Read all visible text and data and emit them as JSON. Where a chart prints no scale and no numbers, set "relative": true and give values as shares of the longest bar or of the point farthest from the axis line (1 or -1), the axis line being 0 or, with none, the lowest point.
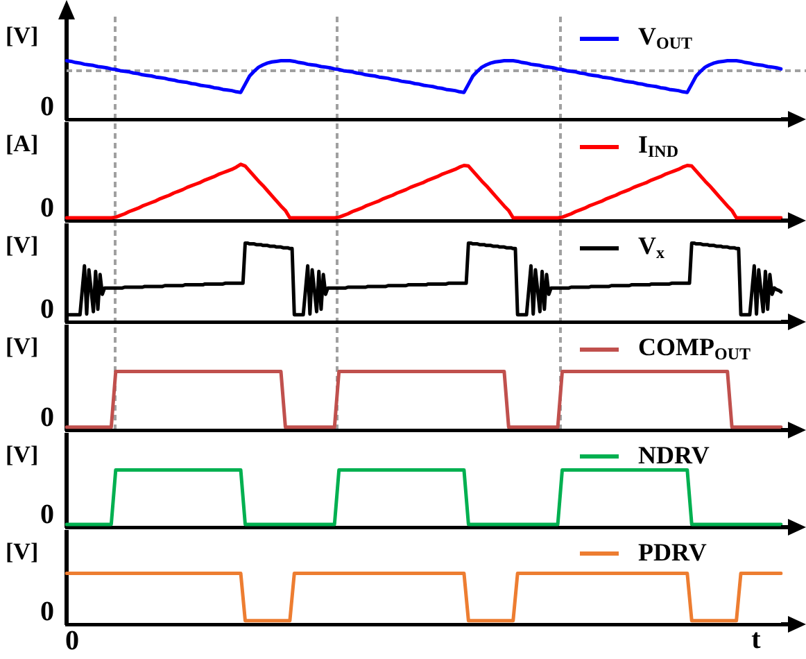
{
  "chart_data": [
    {
      "type": "line",
      "ylabel": "[V]",
      "relative": true,
      "legend": "top right",
      "annotations": [
        "0"
      ],
      "categories": [
        null,
        null,
        null,
        null,
        null,
        null,
        null,
        null,
        null,
        null,
        null,
        null,
        null,
        null,
        null,
        null,
        null,
        null,
        null,
        null,
        null,
        null,
        null,
        null,
        null,
        null,
        null,
        null,
        null,
        null,
        null,
        null,
        null,
        null,
        null,
        null,
        null,
        null,
        null,
        null,
        null,
        null,
        null,
        null,
        null,
        null,
        null,
        null,
        null,
        null,
        null,
        null,
        null,
        null,
        null,
        null,
        null,
        null,
        null,
        null,
        null,
        null,
        null,
        null,
        null,
        null,
        null,
        null,
        null,
        null,
        null,
        null,
        null,
        null,
        null,
        null,
        null,
        null,
        null,
        null,
        null,
        null,
        null,
        null,
        null,
        null,
        null,
        null,
        null,
        null,
        null,
        null,
        null,
        null,
        null,
        null,
        null,
        null,
        null,
        null,
        null,
        null,
        null,
        null,
        null,
        null,
        null,
        null,
        null,
        null,
        null,
        null,
        null,
        null,
        null,
        null,
        null,
        null,
        null,
        null,
        null,
        null,
        null,
        null,
        null,
        null,
        null,
        null,
        null,
        null,
        null,
        null,
        null,
        null,
        null,
        null,
        null,
        null,
        null,
        null,
        null,
        null,
        null,
        null,
        null,
        null,
        null,
        null,
        null,
        null,
        null,
        null,
        null,
        null,
        null,
        null,
        null,
        null,
        null,
        null,
        null
      ],
      "ref_lines": [
        {
          "axis": "y",
          "value": 0.83,
          "color": "#a0a0a0",
          "line_style": "dashed"
        }
      ],
      "series": [
        {
          "name": "V$_{OUT}$",
          "color": "#0000ff",
          "values": [
            1,
            0.99,
            0.97,
            0.96,
            0.94,
            0.93,
            0.92,
            0.9,
            0.89,
            0.88,
            0.86,
            0.85,
            0.83,
            0.82,
            0.81,
            0.79,
            0.78,
            0.76,
            0.75,
            0.74,
            0.72,
            0.71,
            0.7,
            0.68,
            0.67,
            0.65,
            0.64,
            0.63,
            0.61,
            0.6,
            0.58,
            0.57,
            0.56,
            0.54,
            0.53,
            0.51,
            0.5,
            0.49,
            0.47,
            0.46,
            0.6,
            0.74,
            0.82,
            0.89,
            0.93,
            0.96,
            0.98,
            0.99,
            1,
            1,
            1,
            0.99,
            0.97,
            0.96,
            0.94,
            0.93,
            0.92,
            0.9,
            0.89,
            0.88,
            0.86,
            0.85,
            0.83,
            0.82,
            0.81,
            0.79,
            0.78,
            0.76,
            0.75,
            0.74,
            0.72,
            0.71,
            0.7,
            0.68,
            0.67,
            0.65,
            0.64,
            0.63,
            0.61,
            0.6,
            0.58,
            0.57,
            0.56,
            0.54,
            0.53,
            0.51,
            0.5,
            0.49,
            0.47,
            0.46,
            0.6,
            0.74,
            0.82,
            0.89,
            0.93,
            0.96,
            0.98,
            0.99,
            1,
            1,
            1,
            0.99,
            0.97,
            0.96,
            0.94,
            0.93,
            0.92,
            0.9,
            0.89,
            0.88,
            0.86,
            0.85,
            0.83,
            0.82,
            0.81,
            0.79,
            0.78,
            0.76,
            0.75,
            0.74,
            0.72,
            0.71,
            0.7,
            0.68,
            0.67,
            0.65,
            0.64,
            0.63,
            0.61,
            0.6,
            0.58,
            0.57,
            0.56,
            0.54,
            0.53,
            0.51,
            0.5,
            0.49,
            0.47,
            0.46,
            0.6,
            0.74,
            0.82,
            0.89,
            0.93,
            0.96,
            0.98,
            0.99,
            1,
            1,
            1,
            0.99,
            0.97,
            0.96,
            0.94,
            0.93,
            0.92,
            0.9,
            0.89,
            0.88,
            0.86
          ]
        }
      ]
    },
    {
      "type": "line",
      "ylabel": "[A]",
      "relative": true,
      "legend": "top right",
      "annotations": [
        "0"
      ],
      "categories": [
        null,
        null,
        null,
        null,
        null,
        null,
        null,
        null,
        null,
        null,
        null,
        null,
        null,
        null,
        null,
        null,
        null,
        null,
        null,
        null,
        null,
        null,
        null,
        null,
        null,
        null,
        null,
        null,
        null,
        null,
        null,
        null,
        null,
        null,
        null,
        null,
        null,
        null,
        null,
        null,
        null,
        null,
        null,
        null,
        null,
        null,
        null,
        null,
        null,
        null,
        null,
        null,
        null,
        null,
        null,
        null,
        null,
        null,
        null,
        null,
        null,
        null,
        null,
        null,
        null,
        null,
        null,
        null,
        null,
        null,
        null,
        null,
        null,
        null,
        null,
        null,
        null,
        null,
        null,
        null,
        null,
        null,
        null,
        null,
        null,
        null,
        null,
        null,
        null,
        null,
        null,
        null,
        null,
        null,
        null,
        null,
        null,
        null,
        null,
        null,
        null,
        null,
        null,
        null,
        null,
        null,
        null,
        null,
        null,
        null,
        null,
        null,
        null,
        null,
        null,
        null,
        null,
        null,
        null,
        null,
        null,
        null,
        null,
        null,
        null,
        null,
        null,
        null,
        null,
        null,
        null,
        null,
        null,
        null,
        null,
        null,
        null,
        null,
        null,
        null,
        null,
        null,
        null,
        null,
        null,
        null,
        null,
        null,
        null,
        null,
        null,
        null,
        null,
        null,
        null,
        null,
        null,
        null,
        null,
        null,
        null
      ],
      "series": [
        {
          "name": "I$_{IND}$",
          "color": "#ff0000",
          "values": [
            0.05,
            0.05,
            0.05,
            0.05,
            0.05,
            0.05,
            0.05,
            0.05,
            0.05,
            0.05,
            0.05,
            0.06,
            0.09,
            0.12,
            0.16,
            0.19,
            0.22,
            0.26,
            0.29,
            0.32,
            0.35,
            0.39,
            0.42,
            0.45,
            0.49,
            0.52,
            0.55,
            0.59,
            0.62,
            0.65,
            0.68,
            0.72,
            0.75,
            0.78,
            0.82,
            0.85,
            0.88,
            0.91,
            0.95,
            1,
            0.97,
            0.88,
            0.79,
            0.7,
            0.62,
            0.53,
            0.44,
            0.35,
            0.26,
            0.18,
            0.05,
            0.05,
            0.05,
            0.05,
            0.05,
            0.05,
            0.05,
            0.05,
            0.05,
            0.05,
            0.05,
            0.06,
            0.09,
            0.12,
            0.16,
            0.19,
            0.22,
            0.26,
            0.29,
            0.32,
            0.35,
            0.39,
            0.42,
            0.45,
            0.49,
            0.52,
            0.55,
            0.59,
            0.62,
            0.65,
            0.68,
            0.72,
            0.75,
            0.78,
            0.82,
            0.85,
            0.88,
            0.91,
            0.95,
            0.98,
            0.97,
            0.88,
            0.79,
            0.7,
            0.62,
            0.53,
            0.44,
            0.35,
            0.26,
            0.18,
            0.05,
            0.05,
            0.05,
            0.05,
            0.05,
            0.05,
            0.05,
            0.05,
            0.05,
            0.05,
            0.05,
            0.06,
            0.09,
            0.12,
            0.16,
            0.19,
            0.22,
            0.26,
            0.29,
            0.32,
            0.35,
            0.39,
            0.42,
            0.45,
            0.49,
            0.52,
            0.55,
            0.59,
            0.62,
            0.65,
            0.68,
            0.72,
            0.75,
            0.78,
            0.82,
            0.85,
            0.88,
            0.91,
            0.95,
            0.98,
            0.97,
            0.88,
            0.79,
            0.7,
            0.62,
            0.53,
            0.44,
            0.35,
            0.26,
            0.18,
            0.05,
            0.05,
            0.05,
            0.05,
            0.05,
            0.05,
            0.05,
            0.05,
            0.05,
            0.05,
            0.05
          ]
        }
      ]
    },
    {
      "type": "line",
      "ylabel": "[V]",
      "relative": true,
      "legend": "top right",
      "annotations": [
        "0"
      ],
      "categories": [
        null,
        null,
        null,
        null,
        null,
        null,
        null,
        null,
        null,
        null,
        null,
        null,
        null,
        null,
        null,
        null,
        null,
        null,
        null,
        null,
        null,
        null,
        null,
        null,
        null,
        null,
        null,
        null,
        null,
        null,
        null,
        null,
        null,
        null,
        null,
        null,
        null,
        null,
        null,
        null,
        null,
        null,
        null,
        null,
        null,
        null,
        null,
        null,
        null,
        null,
        null,
        null,
        null,
        null,
        null,
        null,
        null,
        null,
        null,
        null,
        null,
        null,
        null,
        null,
        null,
        null,
        null,
        null,
        null,
        null,
        null,
        null,
        null,
        null,
        null,
        null,
        null,
        null,
        null,
        null,
        null,
        null,
        null,
        null,
        null,
        null,
        null,
        null,
        null,
        null,
        null,
        null,
        null,
        null,
        null,
        null,
        null,
        null,
        null,
        null,
        null,
        null,
        null,
        null,
        null,
        null,
        null,
        null,
        null,
        null,
        null,
        null,
        null,
        null,
        null,
        null,
        null,
        null,
        null,
        null,
        null,
        null,
        null,
        null,
        null,
        null,
        null,
        null,
        null,
        null,
        null,
        null,
        null,
        null,
        null,
        null,
        null,
        null,
        null,
        null,
        null,
        null,
        null,
        null,
        null,
        null,
        null,
        null,
        null,
        null,
        null,
        null,
        null,
        null,
        null,
        null,
        null,
        null,
        null,
        null,
        null,
        null,
        null,
        null,
        null,
        null,
        null,
        null,
        null,
        null,
        null,
        null,
        null,
        null,
        null,
        null,
        null,
        null,
        null,
        null,
        null,
        null,
        null,
        null,
        null,
        null,
        null,
        null,
        null,
        null,
        null,
        null,
        null,
        null,
        null,
        null,
        null,
        null,
        null,
        null,
        null,
        null,
        null,
        null,
        null,
        null,
        null,
        null,
        null,
        null,
        null,
        null,
        null,
        null,
        null,
        null,
        null,
        null,
        null,
        null,
        null,
        null,
        null,
        null,
        null,
        null,
        null,
        null,
        null,
        null,
        null,
        null,
        null,
        null,
        null,
        null,
        null,
        null,
        null,
        null,
        null,
        null,
        null,
        null,
        null,
        null,
        null,
        null,
        null,
        null,
        null,
        null,
        null,
        null,
        null,
        null,
        null,
        null,
        null,
        null,
        null,
        null,
        null,
        null,
        null,
        null,
        null,
        null,
        null,
        null,
        null,
        null,
        null,
        null,
        null,
        null,
        null,
        null,
        null,
        null,
        null,
        null,
        null,
        null,
        null,
        null,
        null,
        null,
        null,
        null,
        null,
        null,
        null,
        null,
        null,
        null,
        null,
        null,
        null,
        null,
        null,
        null,
        null,
        null,
        null,
        null,
        null,
        null,
        null,
        null,
        null,
        null,
        null,
        null,
        null,
        null,
        null,
        null,
        null,
        null,
        null
      ],
      "series": [
        {
          "name": "V$_{x}$",
          "color": "#000000",
          "values": [
            0.09,
            0.09,
            0.09,
            0.09,
            0.09,
            0.09,
            0.09,
            0.4,
            0.71,
            0.1,
            0.66,
            0.4,
            0.13,
            0.64,
            0.16,
            0.6,
            0.35,
            0.43,
            0.43,
            0.43,
            0.43,
            0.43,
            0.43,
            0.43,
            0.43,
            0.43,
            0.44,
            0.44,
            0.44,
            0.44,
            0.44,
            0.44,
            0.44,
            0.44,
            0.44,
            0.45,
            0.45,
            0.45,
            0.45,
            0.45,
            0.45,
            0.45,
            0.45,
            0.45,
            0.46,
            0.46,
            0.46,
            0.46,
            0.46,
            0.46,
            0.46,
            0.46,
            0.46,
            0.47,
            0.47,
            0.47,
            0.47,
            0.47,
            0.47,
            0.47,
            0.47,
            0.47,
            0.48,
            0.48,
            0.48,
            0.48,
            0.48,
            0.48,
            0.48,
            0.48,
            0.48,
            0.49,
            0.49,
            0.49,
            0.49,
            0.49,
            0.49,
            0.49,
            0.49,
            0.49,
            1,
            1,
            0.99,
            0.99,
            0.99,
            0.98,
            0.98,
            0.98,
            0.97,
            0.97,
            0.97,
            0.96,
            0.96,
            0.96,
            0.95,
            0.95,
            0.95,
            0.94,
            0.94,
            0.94,
            0.93,
            0.93,
            0.09,
            0.09,
            0.09,
            0.09,
            0.09,
            0.4,
            0.71,
            0.1,
            0.66,
            0.4,
            0.13,
            0.64,
            0.16,
            0.6,
            0.35,
            0.43,
            0.43,
            0.43,
            0.43,
            0.43,
            0.43,
            0.43,
            0.43,
            0.43,
            0.44,
            0.44,
            0.44,
            0.44,
            0.44,
            0.44,
            0.44,
            0.44,
            0.44,
            0.45,
            0.45,
            0.45,
            0.45,
            0.45,
            0.45,
            0.45,
            0.45,
            0.45,
            0.46,
            0.46,
            0.46,
            0.46,
            0.46,
            0.46,
            0.46,
            0.46,
            0.46,
            0.47,
            0.47,
            0.47,
            0.47,
            0.47,
            0.47,
            0.47,
            0.47,
            0.47,
            0.48,
            0.48,
            0.48,
            0.48,
            0.48,
            0.48,
            0.48,
            0.48,
            0.48,
            0.49,
            0.49,
            0.49,
            0.49,
            0.49,
            0.49,
            0.49,
            0.49,
            0.49,
            1,
            1,
            0.99,
            0.99,
            0.99,
            0.98,
            0.98,
            0.98,
            0.97,
            0.97,
            0.97,
            0.96,
            0.96,
            0.96,
            0.95,
            0.95,
            0.95,
            0.94,
            0.94,
            0.94,
            0.93,
            0.93,
            0.09,
            0.09,
            0.09,
            0.09,
            0.09,
            0.4,
            0.71,
            0.1,
            0.66,
            0.4,
            0.13,
            0.64,
            0.16,
            0.6,
            0.35,
            0.43,
            0.43,
            0.43,
            0.43,
            0.43,
            0.43,
            0.43,
            0.43,
            0.43,
            0.44,
            0.44,
            0.44,
            0.44,
            0.44,
            0.44,
            0.44,
            0.44,
            0.44,
            0.45,
            0.45,
            0.45,
            0.45,
            0.45,
            0.45,
            0.45,
            0.45,
            0.45,
            0.46,
            0.46,
            0.46,
            0.46,
            0.46,
            0.46,
            0.46,
            0.46,
            0.46,
            0.47,
            0.47,
            0.47,
            0.47,
            0.47,
            0.47,
            0.47,
            0.47,
            0.47,
            0.48,
            0.48,
            0.48,
            0.48,
            0.48,
            0.48,
            0.48,
            0.48,
            0.48,
            0.49,
            0.49,
            0.49,
            0.49,
            0.49,
            0.49,
            0.49,
            0.49,
            0.49,
            1,
            1,
            0.99,
            0.99,
            0.99,
            0.98,
            0.98,
            0.98,
            0.97,
            0.97,
            0.97,
            0.96,
            0.96,
            0.96,
            0.95,
            0.95,
            0.95,
            0.94,
            0.94,
            0.94,
            0.93,
            0.93,
            0.09,
            0.09,
            0.09,
            0.09,
            0.09,
            0.4,
            0.71,
            0.1,
            0.66,
            0.4,
            0.13,
            0.64,
            0.16,
            0.6,
            0.35,
            0.43,
            0.41,
            0.4,
            0.38
          ]
        }
      ]
    },
    {
      "type": "line",
      "ylabel": "[V]",
      "relative": true,
      "legend": "top right",
      "annotations": [
        "0"
      ],
      "categories": [
        null,
        null,
        null,
        null,
        null,
        null,
        null,
        null,
        null,
        null,
        null,
        null,
        null,
        null,
        null,
        null,
        null,
        null,
        null,
        null,
        null,
        null,
        null,
        null,
        null,
        null,
        null,
        null,
        null,
        null,
        null,
        null,
        null,
        null,
        null,
        null,
        null,
        null,
        null,
        null,
        null,
        null,
        null,
        null,
        null,
        null,
        null,
        null,
        null,
        null,
        null,
        null,
        null,
        null,
        null,
        null,
        null,
        null,
        null,
        null,
        null,
        null,
        null,
        null,
        null,
        null,
        null,
        null,
        null,
        null,
        null,
        null,
        null,
        null,
        null,
        null,
        null,
        null,
        null,
        null,
        null,
        null,
        null,
        null,
        null,
        null,
        null,
        null,
        null,
        null,
        null,
        null,
        null,
        null,
        null,
        null,
        null,
        null,
        null,
        null,
        null,
        null,
        null,
        null,
        null,
        null,
        null,
        null,
        null,
        null,
        null,
        null,
        null,
        null,
        null,
        null,
        null,
        null,
        null,
        null,
        null,
        null,
        null,
        null,
        null,
        null,
        null,
        null,
        null,
        null,
        null,
        null,
        null,
        null,
        null,
        null,
        null,
        null,
        null,
        null,
        null,
        null,
        null,
        null,
        null,
        null,
        null,
        null,
        null,
        null,
        null,
        null,
        null,
        null,
        null,
        null,
        null,
        null,
        null,
        null,
        null
      ],
      "series": [
        {
          "name": "COMP$_{OUT}$",
          "color": "#c0504d",
          "values": [
            0.05,
            0.05,
            0.05,
            0.05,
            0.05,
            0.05,
            0.05,
            0.05,
            0.05,
            0.05,
            0.05,
            1,
            1,
            1,
            1,
            1,
            1,
            1,
            1,
            1,
            1,
            1,
            1,
            1,
            1,
            1,
            1,
            1,
            1,
            1,
            1,
            1,
            1,
            1,
            1,
            1,
            1,
            1,
            1,
            1,
            1,
            1,
            1,
            1,
            1,
            1,
            1,
            1,
            1,
            0.05,
            0.05,
            0.05,
            0.05,
            0.05,
            0.05,
            0.05,
            0.05,
            0.05,
            0.05,
            0.05,
            0.05,
            1,
            1,
            1,
            1,
            1,
            1,
            1,
            1,
            1,
            1,
            1,
            1,
            1,
            1,
            1,
            1,
            1,
            1,
            1,
            1,
            1,
            1,
            1,
            1,
            1,
            1,
            1,
            1,
            1,
            1,
            1,
            1,
            1,
            1,
            1,
            1,
            1,
            1,
            0.05,
            0.05,
            0.05,
            0.05,
            0.05,
            0.05,
            0.05,
            0.05,
            0.05,
            0.05,
            0.05,
            0.05,
            1,
            1,
            1,
            1,
            1,
            1,
            1,
            1,
            1,
            1,
            1,
            1,
            1,
            1,
            1,
            1,
            1,
            1,
            1,
            1,
            1,
            1,
            1,
            1,
            1,
            1,
            1,
            1,
            1,
            1,
            1,
            1,
            1,
            1,
            1,
            1,
            1,
            1,
            0.05,
            0.05,
            0.05,
            0.05,
            0.05,
            0.05,
            0.05,
            0.05,
            0.05,
            0.05,
            0.05,
            0.05
          ]
        }
      ]
    },
    {
      "type": "line",
      "ylabel": "[V]",
      "relative": true,
      "legend": "top right",
      "annotations": [
        "0"
      ],
      "categories": [
        null,
        null,
        null,
        null,
        null,
        null,
        null,
        null,
        null,
        null,
        null,
        null,
        null,
        null,
        null,
        null,
        null,
        null,
        null,
        null,
        null,
        null,
        null,
        null,
        null,
        null,
        null,
        null,
        null,
        null,
        null,
        null,
        null,
        null,
        null,
        null,
        null,
        null,
        null,
        null,
        null,
        null,
        null,
        null,
        null,
        null,
        null,
        null,
        null,
        null,
        null,
        null,
        null,
        null,
        null,
        null,
        null,
        null,
        null,
        null,
        null,
        null,
        null,
        null,
        null,
        null,
        null,
        null,
        null,
        null,
        null,
        null,
        null,
        null,
        null,
        null,
        null,
        null,
        null,
        null,
        null,
        null,
        null,
        null,
        null,
        null,
        null,
        null,
        null,
        null,
        null,
        null,
        null,
        null,
        null,
        null,
        null,
        null,
        null,
        null,
        null,
        null,
        null,
        null,
        null,
        null,
        null,
        null,
        null,
        null,
        null,
        null,
        null,
        null,
        null,
        null,
        null,
        null,
        null,
        null,
        null,
        null,
        null,
        null,
        null,
        null,
        null,
        null,
        null,
        null,
        null,
        null,
        null,
        null,
        null,
        null,
        null,
        null,
        null,
        null,
        null,
        null,
        null,
        null,
        null,
        null,
        null,
        null,
        null,
        null,
        null,
        null,
        null,
        null,
        null,
        null,
        null,
        null,
        null,
        null,
        null
      ],
      "series": [
        {
          "name": "NDRV",
          "color": "#00b050",
          "values": [
            0.05,
            0.05,
            0.05,
            0.05,
            0.05,
            0.05,
            0.05,
            0.05,
            0.05,
            0.05,
            0.05,
            1,
            1,
            1,
            1,
            1,
            1,
            1,
            1,
            1,
            1,
            1,
            1,
            1,
            1,
            1,
            1,
            1,
            1,
            1,
            1,
            1,
            1,
            1,
            1,
            1,
            1,
            1,
            1,
            1,
            0.05,
            0.05,
            0.05,
            0.05,
            0.05,
            0.05,
            0.05,
            0.05,
            0.05,
            0.05,
            0.05,
            0.05,
            0.05,
            0.05,
            0.05,
            0.05,
            0.05,
            0.05,
            0.05,
            0.05,
            0.05,
            1,
            1,
            1,
            1,
            1,
            1,
            1,
            1,
            1,
            1,
            1,
            1,
            1,
            1,
            1,
            1,
            1,
            1,
            1,
            1,
            1,
            1,
            1,
            1,
            1,
            1,
            1,
            1,
            1,
            0.05,
            0.05,
            0.05,
            0.05,
            0.05,
            0.05,
            0.05,
            0.05,
            0.05,
            0.05,
            0.05,
            0.05,
            0.05,
            0.05,
            0.05,
            0.05,
            0.05,
            0.05,
            0.05,
            0.05,
            0.05,
            1,
            1,
            1,
            1,
            1,
            1,
            1,
            1,
            1,
            1,
            1,
            1,
            1,
            1,
            1,
            1,
            1,
            1,
            1,
            1,
            1,
            1,
            1,
            1,
            1,
            1,
            1,
            1,
            1,
            0.05,
            0.05,
            0.05,
            0.05,
            0.05,
            0.05,
            0.05,
            0.05,
            0.05,
            0.05,
            0.05,
            0.05,
            0.05,
            0.05,
            0.05,
            0.05,
            0.05,
            0.05,
            0.05,
            0.05,
            0.05
          ]
        }
      ]
    },
    {
      "type": "line",
      "ylabel": "[V]",
      "xlabel": "t",
      "relative": true,
      "legend": "top right",
      "annotations": [
        "0",
        "0"
      ],
      "categories": [
        null,
        null,
        null,
        null,
        null,
        null,
        null,
        null,
        null,
        null,
        null,
        null,
        null,
        null,
        null,
        null,
        null,
        null,
        null,
        null,
        null,
        null,
        null,
        null,
        null,
        null,
        null,
        null,
        null,
        null,
        null,
        null,
        null,
        null,
        null,
        null,
        null,
        null,
        null,
        null,
        null,
        null,
        null,
        null,
        null,
        null,
        null,
        null,
        null,
        null,
        null,
        null,
        null,
        null,
        null,
        null,
        null,
        null,
        null,
        null,
        null,
        null,
        null,
        null,
        null,
        null,
        null,
        null,
        null,
        null,
        null,
        null,
        null,
        null,
        null,
        null,
        null,
        null,
        null,
        null,
        null,
        null,
        null,
        null,
        null,
        null,
        null,
        null,
        null,
        null,
        null,
        null,
        null,
        null,
        null,
        null,
        null,
        null,
        null,
        null,
        null,
        null,
        null,
        null,
        null,
        null,
        null,
        null,
        null,
        null,
        null,
        null,
        null,
        null,
        null,
        null,
        null,
        null,
        null,
        null,
        null,
        null,
        null,
        null,
        null,
        null,
        null,
        null,
        null,
        null,
        null,
        null,
        null,
        null,
        null,
        null,
        null,
        null,
        null,
        null,
        null,
        null,
        null,
        null,
        null,
        null,
        null,
        null,
        null,
        null,
        null,
        null,
        null,
        null,
        null,
        null,
        null,
        null,
        null,
        null,
        null
      ],
      "series": [
        {
          "name": "PDRV",
          "color": "#ed7d31",
          "values": [
            1,
            1,
            1,
            1,
            1,
            1,
            1,
            1,
            1,
            1,
            1,
            1,
            1,
            1,
            1,
            1,
            1,
            1,
            1,
            1,
            1,
            1,
            1,
            1,
            1,
            1,
            1,
            1,
            1,
            1,
            1,
            1,
            1,
            1,
            1,
            1,
            1,
            1,
            1,
            1,
            0.07,
            0.07,
            0.07,
            0.07,
            0.07,
            0.07,
            0.07,
            0.07,
            0.07,
            0.07,
            0.07,
            1,
            1,
            1,
            1,
            1,
            1,
            1,
            1,
            1,
            1,
            1,
            1,
            1,
            1,
            1,
            1,
            1,
            1,
            1,
            1,
            1,
            1,
            1,
            1,
            1,
            1,
            1,
            1,
            1,
            1,
            1,
            1,
            1,
            1,
            1,
            1,
            1,
            1,
            1,
            0.07,
            0.07,
            0.07,
            0.07,
            0.07,
            0.07,
            0.07,
            0.07,
            0.07,
            0.07,
            0.07,
            1,
            1,
            1,
            1,
            1,
            1,
            1,
            1,
            1,
            1,
            1,
            1,
            1,
            1,
            1,
            1,
            1,
            1,
            1,
            1,
            1,
            1,
            1,
            1,
            1,
            1,
            1,
            1,
            1,
            1,
            1,
            1,
            1,
            1,
            1,
            1,
            1,
            1,
            1,
            0.07,
            0.07,
            0.07,
            0.07,
            0.07,
            0.07,
            0.07,
            0.07,
            0.07,
            0.07,
            0.07,
            1,
            1,
            1,
            1,
            1,
            1,
            1,
            1,
            1,
            1
          ]
        }
      ]
    }
  ]
}
